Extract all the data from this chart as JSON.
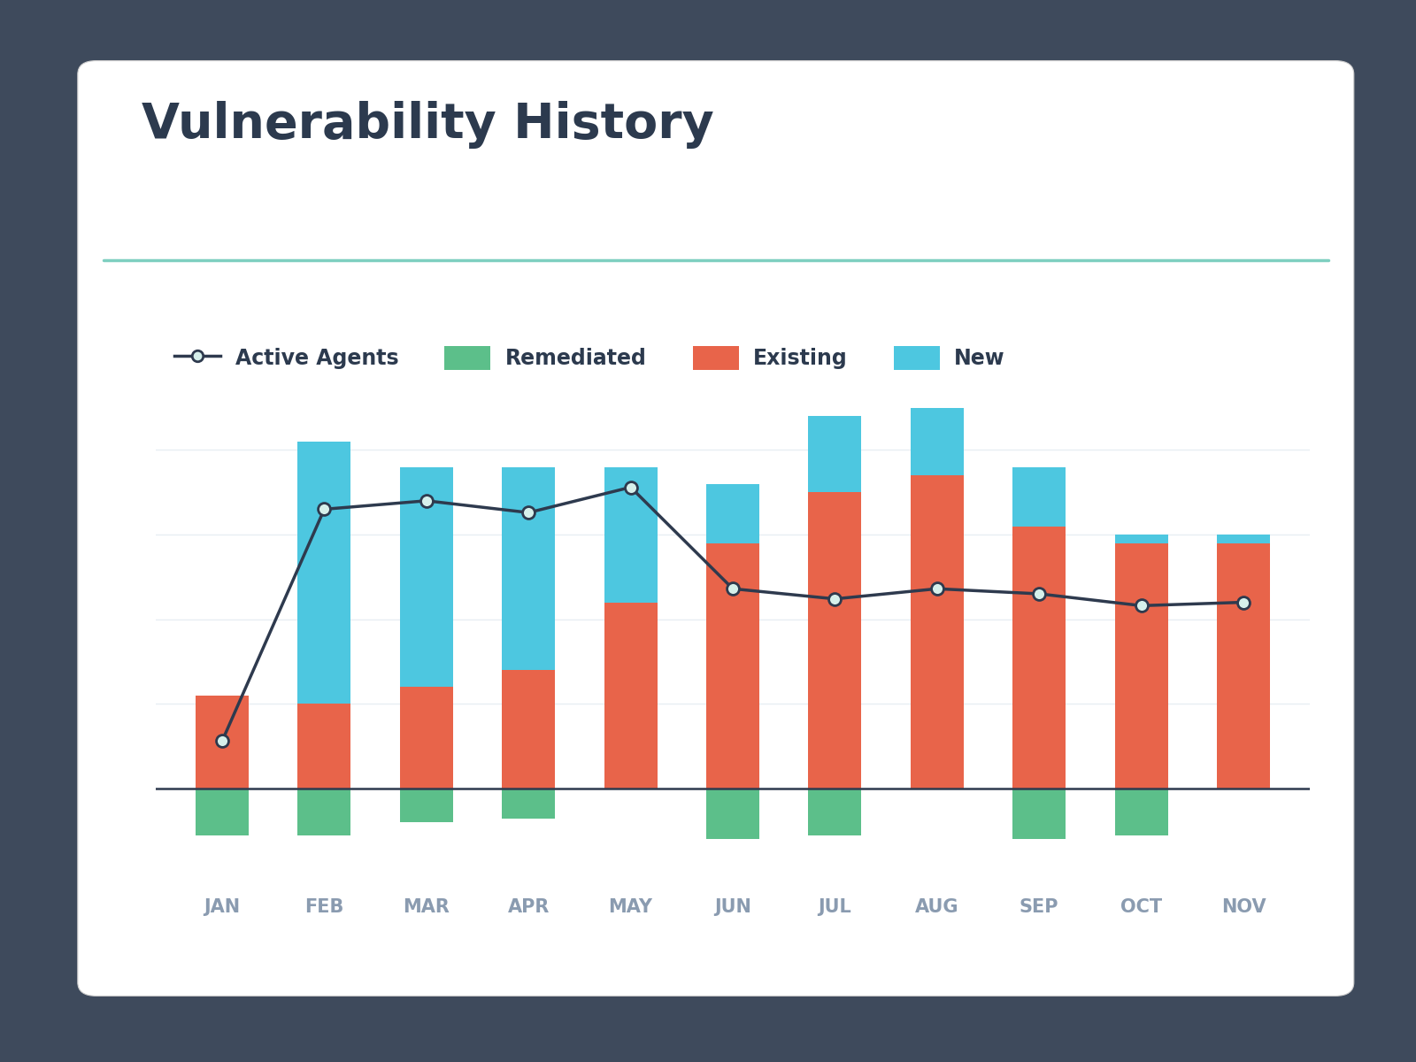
{
  "title": "Vulnerability History",
  "months": [
    "JAN",
    "FEB",
    "MAR",
    "APR",
    "MAY",
    "JUN",
    "JUL",
    "AUG",
    "SEP",
    "OCT",
    "NOV"
  ],
  "existing": [
    55,
    50,
    60,
    70,
    110,
    145,
    175,
    185,
    155,
    145,
    145
  ],
  "new_vals": [
    0,
    155,
    130,
    120,
    80,
    35,
    45,
    40,
    35,
    5,
    5
  ],
  "remediated": [
    28,
    28,
    20,
    18,
    0,
    30,
    28,
    0,
    30,
    28,
    0
  ],
  "active_agents": [
    28,
    165,
    170,
    163,
    178,
    118,
    112,
    118,
    115,
    108,
    110
  ],
  "color_existing": "#E8644A",
  "color_new": "#4DC7E0",
  "color_remediated": "#5CBF8A",
  "color_line": "#2E3A4E",
  "color_marker_fill": "#D6F0EB",
  "color_bg_outer": "#3E4A5C",
  "color_bg_card": "#FFFFFF",
  "color_title": "#2C3A4E",
  "color_separator": "#7ECFC0",
  "color_grid": "#E8EEF3",
  "color_tick": "#8A9BB0",
  "ylim_min": -55,
  "ylim_max": 240
}
